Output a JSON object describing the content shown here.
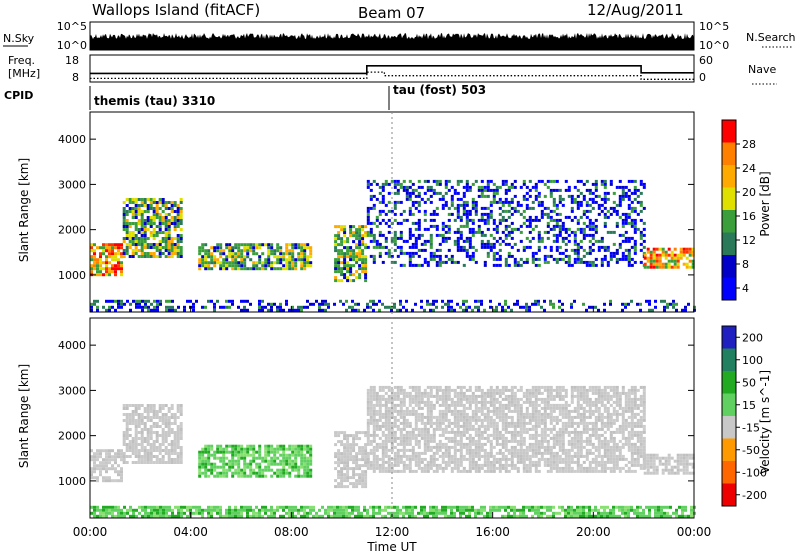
{
  "header": {
    "station": "Wallops Island (fitACF)",
    "beam": "Beam 07",
    "date": "12/Aug/2011"
  },
  "nsky_panel": {
    "left_label": "N.Sky",
    "left_ticks": [
      "10^5",
      "10^0"
    ],
    "right_ticks": [
      "10^5",
      "10^0"
    ],
    "right_label": "N.Search"
  },
  "freq_panel": {
    "left_label_1": "Freq.",
    "left_label_2": "[MHz]",
    "left_ticks": [
      "18",
      "8"
    ],
    "right_ticks": [
      "60",
      "0"
    ],
    "right_label": "Nave",
    "freq_mhz": [
      [
        0.0,
        11.2
      ],
      [
        11.0,
        11.2
      ],
      [
        11.0,
        14.0
      ],
      [
        21.9,
        14.0
      ],
      [
        21.9,
        11.4
      ],
      [
        24.0,
        11.4
      ]
    ],
    "nave": [
      [
        0.0,
        8
      ],
      [
        11.0,
        8
      ],
      [
        11.0,
        22
      ],
      [
        11.7,
        22
      ],
      [
        11.7,
        14
      ],
      [
        21.9,
        14
      ],
      [
        21.9,
        6
      ],
      [
        24.0,
        6
      ]
    ]
  },
  "cpid": {
    "label": "CPID",
    "segments": [
      {
        "start_h": 0.0,
        "name": "themis (tau) 3310"
      },
      {
        "start_h": 12.0,
        "name": "tau (fost) 503"
      }
    ]
  },
  "chart_data": [
    {
      "type": "heatmap",
      "name": "Power",
      "ylabel": "Slant Range [km]",
      "xlabel": "Time UT",
      "x_range_hours": [
        0,
        24
      ],
      "ylim_km": [
        180,
        4600
      ],
      "y_ticks": [
        "4000",
        "3000",
        "2000",
        "1000"
      ],
      "x_ticks": [
        "00:00",
        "04:00",
        "08:00",
        "12:00",
        "16:00",
        "20:00",
        "00:00"
      ],
      "colorbar": {
        "label": "Power [dB]",
        "ticks": [
          "28",
          "24",
          "20",
          "16",
          "12",
          "8",
          "4"
        ],
        "colors": [
          "#ff0000",
          "#ff7f00",
          "#ffaa00",
          "#e0e000",
          "#3a9e3a",
          "#2a7a5a",
          "#0000c8",
          "#0000ff"
        ]
      },
      "regions": [
        {
          "t0": 0.0,
          "t1": 1.3,
          "r0": 1000,
          "r1": 1700,
          "level": "high"
        },
        {
          "t0": 1.3,
          "t1": 3.6,
          "r0": 1400,
          "r1": 2700,
          "level": "mid"
        },
        {
          "t0": 4.3,
          "t1": 8.8,
          "r0": 1150,
          "r1": 1700,
          "level": "mid"
        },
        {
          "t0": 9.7,
          "t1": 11.0,
          "r0": 900,
          "r1": 2100,
          "level": "mid"
        },
        {
          "t0": 11.0,
          "t1": 22.0,
          "r0": 1200,
          "r1": 3100,
          "level": "low"
        },
        {
          "t0": 22.0,
          "t1": 24.0,
          "r0": 1150,
          "r1": 1600,
          "level": "high"
        },
        {
          "t0": 0.0,
          "t1": 24.0,
          "r0": 200,
          "r1": 450,
          "level": "low"
        }
      ]
    },
    {
      "type": "heatmap",
      "name": "Velocity",
      "ylabel": "Slant Range [km]",
      "xlabel": "Time UT",
      "x_range_hours": [
        0,
        24
      ],
      "ylim_km": [
        180,
        4600
      ],
      "y_ticks": [
        "4000",
        "3000",
        "2000",
        "1000"
      ],
      "x_ticks": [
        "00:00",
        "04:00",
        "08:00",
        "12:00",
        "16:00",
        "20:00",
        "00:00"
      ],
      "colorbar": {
        "label": "Velocity [m s^-1]",
        "ticks": [
          "200",
          "100",
          "50",
          "15",
          "-15",
          "-50",
          "-100",
          "-200"
        ],
        "colors": [
          "#2020c0",
          "#208060",
          "#22aa22",
          "#60d060",
          "#c8c8c8",
          "#ff9900",
          "#ff6600",
          "#ee0000"
        ]
      },
      "regions": [
        {
          "t0": 0.0,
          "t1": 1.3,
          "r0": 1000,
          "r1": 1700,
          "level": "ground"
        },
        {
          "t0": 1.3,
          "t1": 3.6,
          "r0": 1400,
          "r1": 2700,
          "level": "ground"
        },
        {
          "t0": 4.3,
          "t1": 8.8,
          "r0": 1100,
          "r1": 1800,
          "level": "green"
        },
        {
          "t0": 9.7,
          "t1": 11.0,
          "r0": 900,
          "r1": 2100,
          "level": "ground"
        },
        {
          "t0": 11.0,
          "t1": 22.0,
          "r0": 1200,
          "r1": 3100,
          "level": "ground"
        },
        {
          "t0": 22.0,
          "t1": 24.0,
          "r0": 1150,
          "r1": 1600,
          "level": "ground"
        },
        {
          "t0": 0.0,
          "t1": 24.0,
          "r0": 200,
          "r1": 450,
          "level": "green"
        }
      ]
    }
  ]
}
